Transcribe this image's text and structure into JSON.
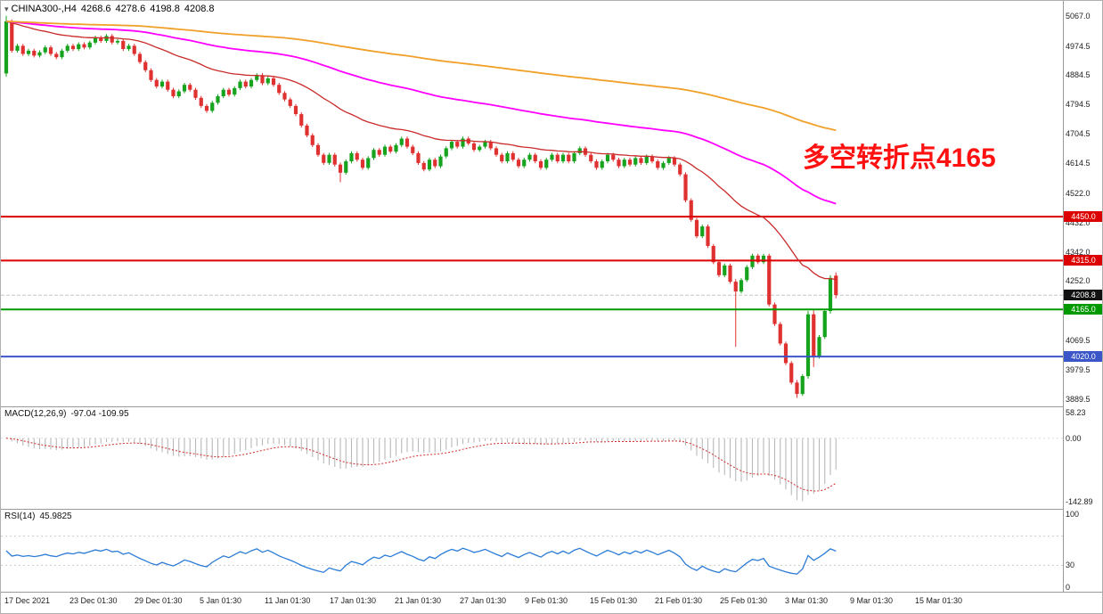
{
  "chart_data": {
    "type": "candlestick",
    "title": "CHINA300-,H4",
    "symbol": "CHINA300-",
    "timeframe": "H4",
    "last_ohlc": {
      "open": "4268.6",
      "high": "4278.6",
      "low": "4198.8",
      "close": "4208.8"
    },
    "annotation": {
      "text": "多空转折点4165",
      "color": "#ff1111"
    },
    "price_axis_ticks": [
      5067.0,
      4974.5,
      4884.5,
      4794.5,
      4704.5,
      4614.5,
      4522.0,
      4432.0,
      4342.0,
      4252.0,
      4069.5,
      3979.5,
      3889.5
    ],
    "time_ticks": [
      "17 Dec 2021",
      "23 Dec 01:30",
      "29 Dec 01:30",
      "5 Jan 01:30",
      "11 Jan 01:30",
      "17 Jan 01:30",
      "21 Jan 01:30",
      "27 Jan 01:30",
      "9 Feb 01:30",
      "15 Feb 01:30",
      "21 Feb 01:30",
      "25 Feb 01:30",
      "3 Mar 01:30",
      "9 Mar 01:30",
      "15 Mar 01:30"
    ],
    "levels": [
      {
        "price": 4450.0,
        "label": "4450.0",
        "color": "#dd0000"
      },
      {
        "price": 4315.0,
        "label": "4315.0",
        "color": "#dd0000"
      },
      {
        "price": 4165.0,
        "label": "4165.0",
        "color": "#009900"
      },
      {
        "price": 4020.0,
        "label": "4020.0",
        "color": "#3b56c8"
      }
    ],
    "current_price": {
      "price": 4208.8,
      "label": "4208.8",
      "tag_color": "#111111"
    },
    "style": {
      "up_color": "#16a31e",
      "down_color": "#e03131"
    },
    "moving_averages": [
      {
        "name": "ma-fast",
        "period": 34,
        "color": "#c92a2a",
        "width": 1.3
      },
      {
        "name": "ma-medium",
        "period": 100,
        "color": "#ff00ff",
        "width": 1.8
      },
      {
        "name": "ma-slow",
        "period": 250,
        "color": "#f0a028",
        "width": 1.8
      }
    ],
    "closes": [
      5050,
      4960,
      4975,
      4950,
      4960,
      4945,
      4955,
      4970,
      4950,
      4940,
      4960,
      4975,
      4965,
      4980,
      4970,
      4985,
      5000,
      4990,
      5005,
      4985,
      4990,
      4965,
      4975,
      4950,
      4925,
      4900,
      4870,
      4850,
      4865,
      4840,
      4820,
      4835,
      4855,
      4840,
      4815,
      4790,
      4775,
      4800,
      4820,
      4840,
      4825,
      4845,
      4865,
      4850,
      4870,
      4885,
      4860,
      4875,
      4855,
      4830,
      4810,
      4790,
      4765,
      4730,
      4700,
      4670,
      4640,
      4615,
      4640,
      4610,
      4585,
      4620,
      4645,
      4625,
      4600,
      4630,
      4655,
      4640,
      4665,
      4650,
      4670,
      4690,
      4665,
      4645,
      4615,
      4595,
      4625,
      4605,
      4635,
      4660,
      4680,
      4665,
      4690,
      4675,
      4655,
      4665,
      4680,
      4660,
      4640,
      4620,
      4645,
      4625,
      4605,
      4625,
      4640,
      4620,
      4600,
      4625,
      4640,
      4620,
      4640,
      4620,
      4645,
      4660,
      4640,
      4620,
      4600,
      4620,
      4640,
      4625,
      4605,
      4625,
      4610,
      4630,
      4615,
      4635,
      4620,
      4600,
      4615,
      4630,
      4610,
      4580,
      4500,
      4440,
      4390,
      4420,
      4360,
      4310,
      4270,
      4300,
      4250,
      4220,
      4255,
      4295,
      4330,
      4310,
      4330,
      4180,
      4120,
      4060,
      4000,
      3940,
      3905,
      3960,
      4150,
      4020,
      4080,
      4160,
      4262,
      4208.8
    ],
    "default_wick": 6,
    "candle_overrides": {
      "0": [
        4890,
        5067,
        4880,
        5050
      ],
      "60": [
        4610,
        4616,
        4556,
        4585
      ],
      "131": [
        4250,
        4258,
        4050,
        4220
      ],
      "142": [
        3940,
        3948,
        3893,
        3905
      ],
      "144": [
        3960,
        4160,
        3952,
        4150
      ],
      "145": [
        4150,
        4162,
        3988,
        4020
      ],
      "148": [
        4160,
        4270,
        4152,
        4262
      ],
      "149": [
        4268.6,
        4278.6,
        4198.8,
        4208.8
      ]
    },
    "macd": {
      "label": "MACD(12,26,9)",
      "values_text": "-97.04 -109.95",
      "fast": 12,
      "slow": 26,
      "signal_period": 9,
      "axis_ticks": [
        58.23,
        0,
        -142.89
      ],
      "scale_min_target": -142.89,
      "bar_color": "#b8b8b8",
      "signal_color": "#cf2b2b"
    },
    "rsi": {
      "label": "RSI(14)",
      "value_text": "45.9825",
      "period": 14,
      "axis_ticks": [
        100,
        30,
        0
      ],
      "levels": [
        30,
        70
      ],
      "line_color": "#2b7cd6"
    }
  }
}
